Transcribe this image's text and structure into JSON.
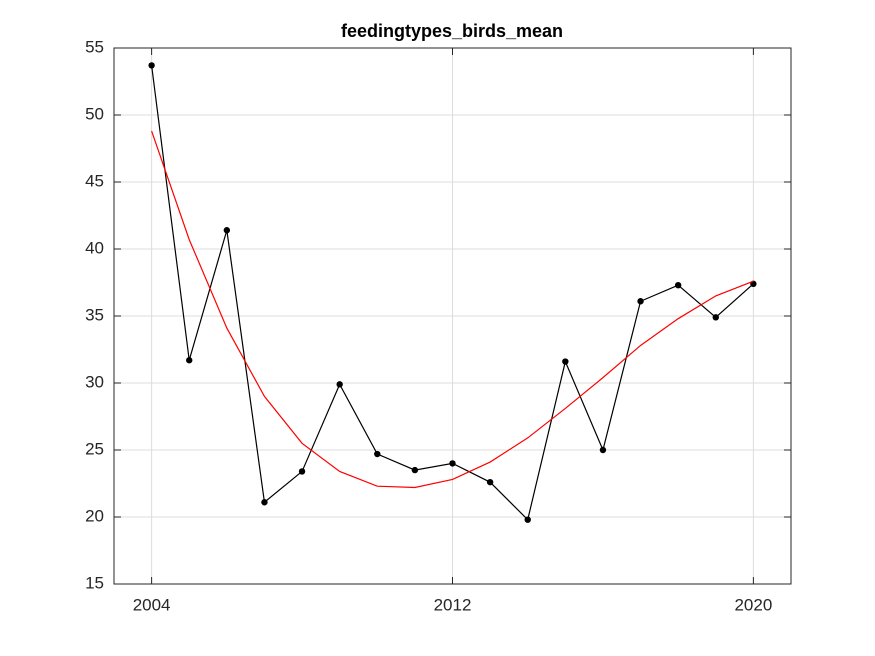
{
  "chart_data": {
    "type": "line",
    "title": "feedingtypes_birds_mean",
    "x": [
      2004,
      2005,
      2006,
      2007,
      2008,
      2009,
      2010,
      2011,
      2012,
      2013,
      2014,
      2015,
      2016,
      2017,
      2018,
      2019,
      2020
    ],
    "series": [
      {
        "color": "#000000",
        "marker": true,
        "values": [
          53.7,
          31.7,
          41.4,
          21.1,
          23.4,
          29.9,
          24.7,
          23.5,
          24.0,
          22.6,
          19.8,
          31.6,
          25.0,
          36.1,
          37.3,
          34.9,
          37.4
        ]
      },
      {
        "color": "#ff0000",
        "marker": false,
        "values": [
          48.8,
          40.7,
          34.1,
          29.0,
          25.5,
          23.4,
          22.3,
          22.2,
          22.8,
          24.1,
          25.9,
          28.1,
          30.4,
          32.8,
          34.8,
          36.5,
          37.6
        ]
      }
    ],
    "xlim": [
      2003,
      2021
    ],
    "xticks": [
      2004,
      2012,
      2020
    ],
    "ylim": [
      15,
      55
    ],
    "yticks": [
      15,
      20,
      25,
      30,
      35,
      40,
      45,
      50,
      55
    ],
    "grid": true
  }
}
